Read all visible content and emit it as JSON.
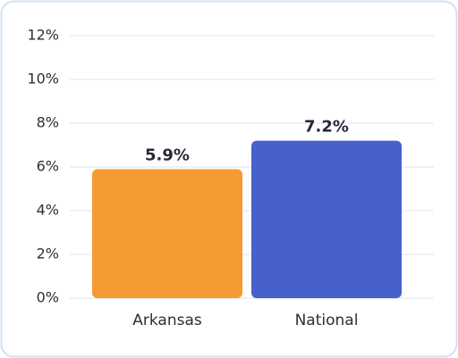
{
  "chart_data": {
    "type": "bar",
    "categories": [
      "Arkansas",
      "National"
    ],
    "values": [
      5.9,
      7.2
    ],
    "value_labels": [
      "5.9%",
      "7.2%"
    ],
    "colors": [
      "#f59b33",
      "#4760cb"
    ],
    "ylim": [
      0,
      12
    ],
    "yticks": [
      {
        "value": 0,
        "label": "0%"
      },
      {
        "value": 2,
        "label": "2%"
      },
      {
        "value": 4,
        "label": "4%"
      },
      {
        "value": 6,
        "label": "6%"
      },
      {
        "value": 8,
        "label": "8%"
      },
      {
        "value": 10,
        "label": "10%"
      },
      {
        "value": 12,
        "label": "12%"
      }
    ],
    "grid": true
  }
}
